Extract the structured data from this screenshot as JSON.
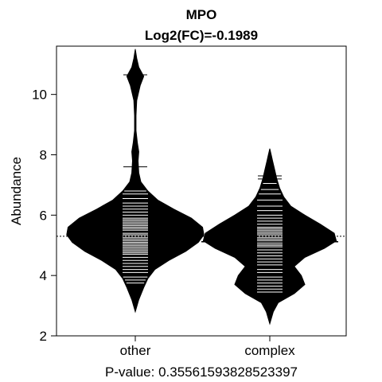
{
  "chart_data": {
    "type": "beanplot",
    "title": "MPO",
    "subtitle": "Log2(FC)=-0.1989",
    "ylabel": "Abundance",
    "xlabel": "P-value: 0.35561593828523397",
    "ylim": [
      2,
      11.6
    ],
    "yticks": [
      2,
      4,
      6,
      8,
      10
    ],
    "overall_reference_line": 5.3,
    "categories": [
      "other",
      "complex"
    ],
    "beans": [
      {
        "category": "other",
        "mean_line": 5.45,
        "density_range": [
          2.8,
          11.5
        ],
        "density": [
          [
            2.8,
            0.0
          ],
          [
            3.2,
            0.05
          ],
          [
            3.6,
            0.12
          ],
          [
            3.9,
            0.18
          ],
          [
            4.2,
            0.28
          ],
          [
            4.5,
            0.48
          ],
          [
            4.8,
            0.72
          ],
          [
            5.1,
            0.9
          ],
          [
            5.35,
            0.98
          ],
          [
            5.6,
            0.96
          ],
          [
            5.9,
            0.8
          ],
          [
            6.2,
            0.55
          ],
          [
            6.5,
            0.32
          ],
          [
            6.8,
            0.18
          ],
          [
            7.1,
            0.08
          ],
          [
            7.4,
            0.05
          ],
          [
            7.8,
            0.04
          ],
          [
            8.1,
            0.05
          ],
          [
            8.4,
            0.03
          ],
          [
            8.8,
            0.01
          ],
          [
            9.3,
            0.01
          ],
          [
            9.8,
            0.02
          ],
          [
            10.3,
            0.07
          ],
          [
            10.6,
            0.12
          ],
          [
            10.9,
            0.05
          ],
          [
            11.2,
            0.02
          ],
          [
            11.5,
            0.0
          ]
        ],
        "points": [
          3.75,
          3.85,
          3.95,
          4.1,
          4.2,
          4.3,
          4.4,
          4.5,
          4.6,
          4.7,
          4.75,
          4.8,
          4.85,
          4.9,
          4.95,
          5.0,
          5.05,
          5.1,
          5.15,
          5.2,
          5.25,
          5.3,
          5.35,
          5.4,
          5.45,
          5.5,
          5.55,
          5.6,
          5.65,
          5.7,
          5.75,
          5.8,
          5.85,
          5.9,
          6.0,
          6.1,
          6.2,
          6.3,
          6.4,
          6.55,
          6.7,
          6.8,
          7.6,
          10.65
        ]
      },
      {
        "category": "complex",
        "mean_line": 5.12,
        "density_range": [
          2.4,
          8.2
        ],
        "density": [
          [
            2.4,
            0.0
          ],
          [
            2.8,
            0.05
          ],
          [
            3.1,
            0.12
          ],
          [
            3.4,
            0.35
          ],
          [
            3.7,
            0.5
          ],
          [
            4.0,
            0.45
          ],
          [
            4.3,
            0.35
          ],
          [
            4.6,
            0.5
          ],
          [
            4.9,
            0.78
          ],
          [
            5.15,
            0.95
          ],
          [
            5.4,
            0.92
          ],
          [
            5.7,
            0.72
          ],
          [
            6.0,
            0.5
          ],
          [
            6.3,
            0.3
          ],
          [
            6.6,
            0.2
          ],
          [
            6.9,
            0.14
          ],
          [
            7.2,
            0.1
          ],
          [
            7.5,
            0.07
          ],
          [
            7.8,
            0.04
          ],
          [
            8.0,
            0.02
          ],
          [
            8.2,
            0.0
          ]
        ],
        "points": [
          3.45,
          3.55,
          3.65,
          3.75,
          3.85,
          3.95,
          4.1,
          4.2,
          4.35,
          4.45,
          4.55,
          4.65,
          4.75,
          4.85,
          4.95,
          5.0,
          5.05,
          5.1,
          5.15,
          5.2,
          5.25,
          5.3,
          5.35,
          5.4,
          5.45,
          5.5,
          5.55,
          5.6,
          5.7,
          5.8,
          5.9,
          6.0,
          6.15,
          6.3,
          6.5,
          6.7,
          6.85,
          7.05,
          7.2,
          7.3
        ]
      }
    ]
  }
}
